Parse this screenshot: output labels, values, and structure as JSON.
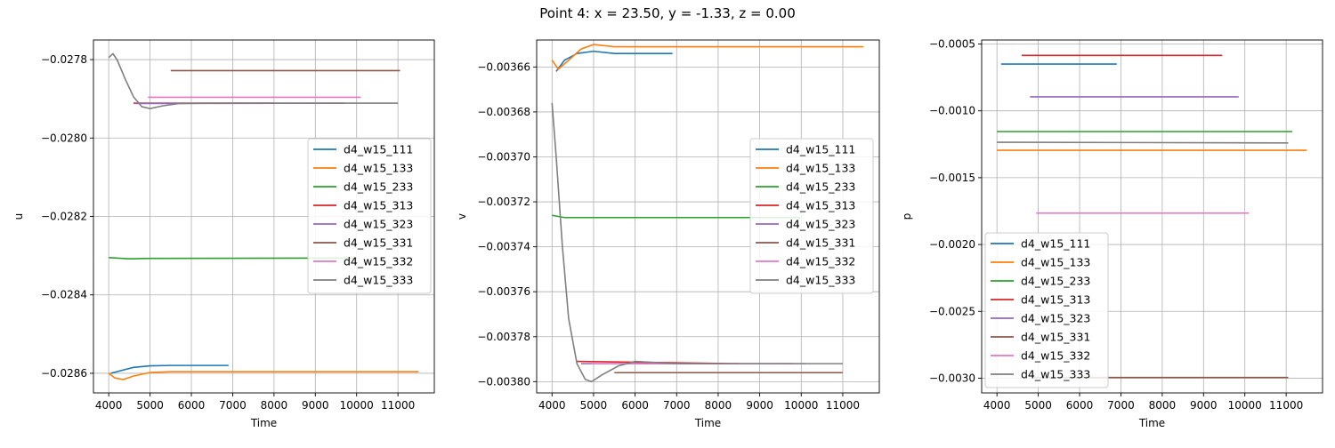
{
  "figure": {
    "suptitle": "Point 4: x = 23.50, y = -1.33, z = 0.00"
  },
  "chart_data": [
    {
      "type": "line",
      "ylabel": "u",
      "xlabel": "Time",
      "xlim": [
        3630,
        11880
      ],
      "ylim": [
        -0.02865,
        -0.02775
      ],
      "xticks": [
        4000,
        5000,
        6000,
        7000,
        8000,
        9000,
        10000,
        11000
      ],
      "xtick_labels": [
        "4000",
        "5000",
        "6000",
        "7000",
        "8000",
        "9000",
        "10000",
        "11000"
      ],
      "yticks": [
        -0.0286,
        -0.0284,
        -0.0282,
        -0.028,
        -0.0278
      ],
      "ytick_labels": [
        "−0.0286",
        "−0.0284",
        "−0.0282",
        "−0.0280",
        "−0.0278"
      ],
      "grid": true,
      "legend_position": "right",
      "series": [
        {
          "name": "d4_w15_111",
          "color": "#1f77b4",
          "points": [
            [
              4050,
              -0.0286
            ],
            [
              4300,
              -0.028593
            ],
            [
              4600,
              -0.028585
            ],
            [
              5000,
              -0.028581
            ],
            [
              5500,
              -0.02858
            ],
            [
              6900,
              -0.02858
            ]
          ]
        },
        {
          "name": "d4_w15_133",
          "color": "#ff7f0e",
          "points": [
            [
              4000,
              -0.0286
            ],
            [
              4150,
              -0.028612
            ],
            [
              4350,
              -0.028616
            ],
            [
              4600,
              -0.028607
            ],
            [
              5000,
              -0.028598
            ],
            [
              5500,
              -0.028596
            ],
            [
              11500,
              -0.028596
            ]
          ]
        },
        {
          "name": "d4_w15_233",
          "color": "#2ca02c",
          "points": [
            [
              4000,
              -0.028305
            ],
            [
              4500,
              -0.028308
            ],
            [
              5000,
              -0.028307
            ],
            [
              10000,
              -0.028306
            ]
          ]
        },
        {
          "name": "d4_w15_313",
          "color": "#d62728",
          "points": [
            [
              4600,
              -0.027911
            ],
            [
              8000,
              -0.027911
            ]
          ]
        },
        {
          "name": "d4_w15_323",
          "color": "#9467bd",
          "points": [
            [
              4650,
              -0.027912
            ],
            [
              9700,
              -0.027911
            ]
          ]
        },
        {
          "name": "d4_w15_331",
          "color": "#8c564b",
          "points": [
            [
              5500,
              -0.027828
            ],
            [
              11050,
              -0.027828
            ]
          ]
        },
        {
          "name": "d4_w15_332",
          "color": "#e377c2",
          "points": [
            [
              4950,
              -0.027896
            ],
            [
              10100,
              -0.027896
            ]
          ]
        },
        {
          "name": "d4_w15_333",
          "color": "#7f7f7f",
          "points": [
            [
              4000,
              -0.027795
            ],
            [
              4100,
              -0.027785
            ],
            [
              4200,
              -0.0278
            ],
            [
              4400,
              -0.02785
            ],
            [
              4600,
              -0.027895
            ],
            [
              4800,
              -0.02792
            ],
            [
              5000,
              -0.027925
            ],
            [
              5300,
              -0.027918
            ],
            [
              5700,
              -0.027912
            ],
            [
              6500,
              -0.027911
            ],
            [
              11000,
              -0.027911
            ]
          ]
        }
      ]
    },
    {
      "type": "line",
      "ylabel": "v",
      "xlabel": "Time",
      "xlim": [
        3630,
        11880
      ],
      "ylim": [
        -0.003805,
        -0.003648
      ],
      "xticks": [
        4000,
        5000,
        6000,
        7000,
        8000,
        9000,
        10000,
        11000
      ],
      "xtick_labels": [
        "4000",
        "5000",
        "6000",
        "7000",
        "8000",
        "9000",
        "10000",
        "11000"
      ],
      "yticks": [
        -0.0038,
        -0.00378,
        -0.00376,
        -0.00374,
        -0.00372,
        -0.0037,
        -0.00368,
        -0.00366
      ],
      "ytick_labels": [
        "−0.00380",
        "−0.00378",
        "−0.00376",
        "−0.00374",
        "−0.00372",
        "−0.00370",
        "−0.00368",
        "−0.00366"
      ],
      "grid": true,
      "legend_position": "right",
      "series": [
        {
          "name": "d4_w15_111",
          "color": "#1f77b4",
          "points": [
            [
              4100,
              -0.003662
            ],
            [
              4300,
              -0.003657
            ],
            [
              4600,
              -0.003654
            ],
            [
              5000,
              -0.003653
            ],
            [
              5500,
              -0.003654
            ],
            [
              6900,
              -0.003654
            ]
          ]
        },
        {
          "name": "d4_w15_133",
          "color": "#ff7f0e",
          "points": [
            [
              4000,
              -0.003657
            ],
            [
              4150,
              -0.003661
            ],
            [
              4400,
              -0.003657
            ],
            [
              4700,
              -0.003652
            ],
            [
              5000,
              -0.00365
            ],
            [
              5500,
              -0.003651
            ],
            [
              11500,
              -0.003651
            ]
          ]
        },
        {
          "name": "d4_w15_233",
          "color": "#2ca02c",
          "points": [
            [
              4000,
              -0.003726
            ],
            [
              4300,
              -0.003727
            ],
            [
              5000,
              -0.003727
            ],
            [
              10000,
              -0.003727
            ]
          ]
        },
        {
          "name": "d4_w15_313",
          "color": "#d62728",
          "points": [
            [
              4600,
              -0.003791
            ],
            [
              8500,
              -0.003792
            ]
          ]
        },
        {
          "name": "d4_w15_323",
          "color": "#9467bd",
          "points": [
            [
              4700,
              -0.003792
            ],
            [
              9800,
              -0.003792
            ]
          ]
        },
        {
          "name": "d4_w15_331",
          "color": "#8c564b",
          "points": [
            [
              5500,
              -0.003796
            ],
            [
              11000,
              -0.003796
            ]
          ]
        },
        {
          "name": "d4_w15_332",
          "color": "#e377c2",
          "points": [
            [
              4950,
              -0.003792
            ],
            [
              10100,
              -0.003792
            ]
          ]
        },
        {
          "name": "d4_w15_333",
          "color": "#7f7f7f",
          "points": [
            [
              4000,
              -0.003676
            ],
            [
              4100,
              -0.0037
            ],
            [
              4250,
              -0.00374
            ],
            [
              4400,
              -0.003772
            ],
            [
              4600,
              -0.003792
            ],
            [
              4800,
              -0.003799
            ],
            [
              4950,
              -0.0038
            ],
            [
              5200,
              -0.003797
            ],
            [
              5600,
              -0.003793
            ],
            [
              6000,
              -0.003791
            ],
            [
              7000,
              -0.003792
            ],
            [
              11000,
              -0.003792
            ]
          ]
        }
      ]
    },
    {
      "type": "line",
      "ylabel": "p",
      "xlabel": "Time",
      "xlim": [
        3630,
        11880
      ],
      "ylim": [
        -0.00311,
        -0.00047
      ],
      "xticks": [
        4000,
        5000,
        6000,
        7000,
        8000,
        9000,
        10000,
        11000
      ],
      "xtick_labels": [
        "4000",
        "5000",
        "6000",
        "7000",
        "8000",
        "9000",
        "10000",
        "11000"
      ],
      "yticks": [
        -0.003,
        -0.0025,
        -0.002,
        -0.0015,
        -0.001,
        -0.0005
      ],
      "ytick_labels": [
        "−0.0030",
        "−0.0025",
        "−0.0020",
        "−0.0015",
        "−0.0010",
        "−0.0005"
      ],
      "grid": true,
      "legend_position": "lower left",
      "series": [
        {
          "name": "d4_w15_111",
          "color": "#1f77b4",
          "points": [
            [
              4100,
              -0.00065
            ],
            [
              6900,
              -0.00065
            ]
          ]
        },
        {
          "name": "d4_w15_133",
          "color": "#ff7f0e",
          "points": [
            [
              4000,
              -0.001295
            ],
            [
              11500,
              -0.001295
            ]
          ]
        },
        {
          "name": "d4_w15_233",
          "color": "#2ca02c",
          "points": [
            [
              4000,
              -0.001155
            ],
            [
              11150,
              -0.001155
            ]
          ]
        },
        {
          "name": "d4_w15_313",
          "color": "#d62728",
          "points": [
            [
              4600,
              -0.000585
            ],
            [
              9450,
              -0.000585
            ]
          ]
        },
        {
          "name": "d4_w15_323",
          "color": "#9467bd",
          "points": [
            [
              4800,
              -0.000895
            ],
            [
              9850,
              -0.000895
            ]
          ]
        },
        {
          "name": "d4_w15_331",
          "color": "#8c564b",
          "points": [
            [
              4900,
              -0.002995
            ],
            [
              11050,
              -0.002995
            ]
          ]
        },
        {
          "name": "d4_w15_332",
          "color": "#e377c2",
          "points": [
            [
              4950,
              -0.001765
            ],
            [
              10100,
              -0.001765
            ]
          ]
        },
        {
          "name": "d4_w15_333",
          "color": "#7f7f7f",
          "points": [
            [
              4000,
              -0.001235
            ],
            [
              11050,
              -0.00124
            ]
          ]
        }
      ]
    }
  ]
}
